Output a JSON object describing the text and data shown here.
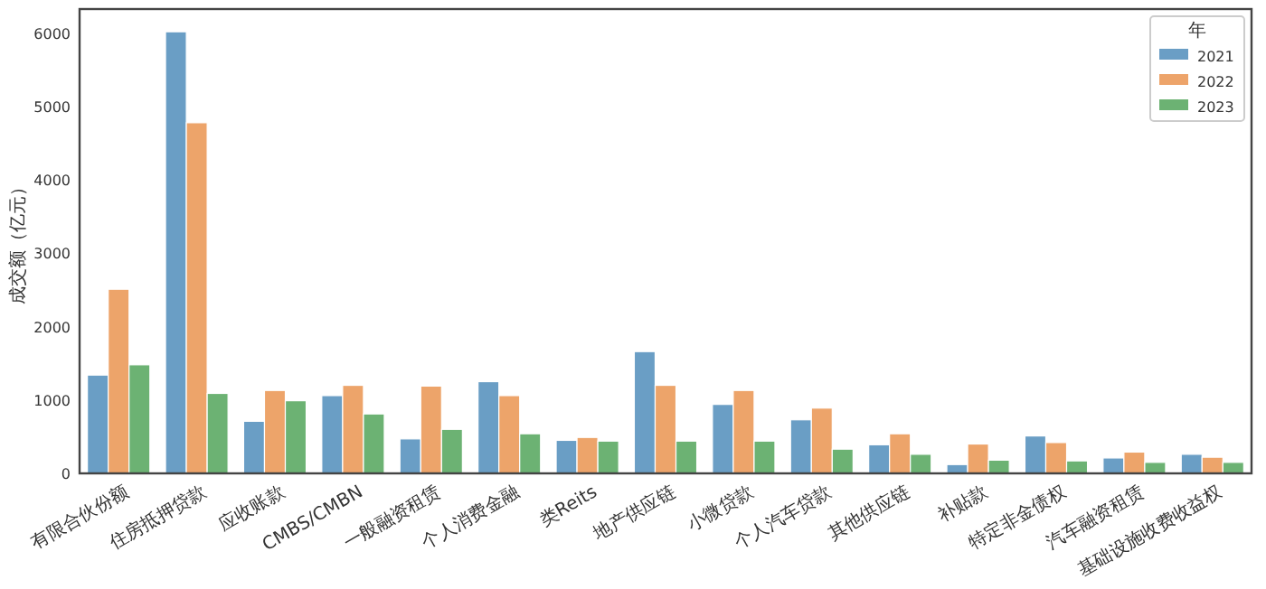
{
  "chart_data": {
    "type": "bar",
    "ylabel": "成交额（亿元）",
    "legend_title": "年",
    "legend": "top right",
    "grid": false,
    "categories": [
      "有限合伙份额",
      "住房抵押贷款",
      "应收账款",
      "CMBS/CMBN",
      "一般融资租赁",
      "个人消费金融",
      "类Reits",
      "地产供应链",
      "小微贷款",
      "个人汽车贷款",
      "其他供应链",
      "补贴款",
      "特定非金债权",
      "汽车融资租赁",
      "基础设施收费收益权"
    ],
    "series": [
      {
        "name": "2021",
        "color": "#6a9ec5",
        "values": [
          1340,
          6020,
          710,
          1060,
          470,
          1250,
          450,
          1660,
          940,
          730,
          390,
          120,
          510,
          210,
          260
        ]
      },
      {
        "name": "2022",
        "color": "#eda46a",
        "values": [
          2510,
          4780,
          1130,
          1200,
          1190,
          1060,
          490,
          1200,
          1130,
          890,
          540,
          400,
          420,
          290,
          220
        ]
      },
      {
        "name": "2023",
        "color": "#6cb273",
        "values": [
          1480,
          1090,
          990,
          810,
          600,
          540,
          440,
          440,
          440,
          330,
          260,
          180,
          170,
          150,
          150
        ]
      }
    ],
    "ylim": [
      0,
      6330
    ],
    "yticks": [
      0,
      1000,
      2000,
      3000,
      4000,
      5000,
      6000
    ]
  }
}
